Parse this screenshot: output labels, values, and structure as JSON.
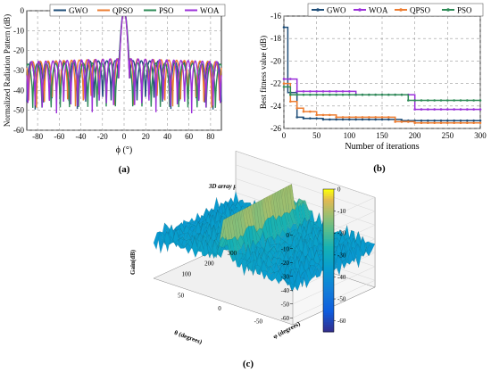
{
  "chart_data": [
    {
      "panel_label": "(a)",
      "type": "line",
      "xlabel": "ϕ (°)",
      "ylabel": "Normalized Radiation Pattern (dB)",
      "xlim": [
        -90,
        90
      ],
      "ylim": [
        -60,
        0
      ],
      "xticks": [
        "-80",
        "-60",
        "-40",
        "-20",
        "0",
        "20",
        "40",
        "60",
        "80"
      ],
      "yticks": [
        "0",
        "-10",
        "-20",
        "-30",
        "-40",
        "-50",
        "-60"
      ],
      "grid": true,
      "legend_position": "top",
      "series": [
        {
          "name": "GWO",
          "color": "#1f4e79",
          "main_lobe_width_deg": 10,
          "sidelobe_peak_db": -25,
          "sidelobe_floor_db": -52,
          "ripple_period_deg": 7.8,
          "phase": 0.3
        },
        {
          "name": "QPSO",
          "color": "#ed7d31",
          "main_lobe_width_deg": 10,
          "sidelobe_peak_db": -24,
          "sidelobe_floor_db": -51,
          "ripple_period_deg": 7.2,
          "phase": 1.4
        },
        {
          "name": "PSO",
          "color": "#2e8b57",
          "main_lobe_width_deg": 11,
          "sidelobe_peak_db": -26,
          "sidelobe_floor_db": -55,
          "ripple_period_deg": 8.5,
          "phase": 2.2
        },
        {
          "name": "WOA",
          "color": "#9b30d9",
          "main_lobe_width_deg": 10,
          "sidelobe_peak_db": -24,
          "sidelobe_floor_db": -55,
          "ripple_period_deg": 6.6,
          "phase": 0.9
        }
      ]
    },
    {
      "panel_label": "(b)",
      "type": "line",
      "xlabel": "Number of iterations",
      "ylabel": "Best fitness value (dB)",
      "xlim": [
        0,
        300
      ],
      "ylim": [
        -26,
        -16
      ],
      "xticks": [
        "0",
        "50",
        "100",
        "150",
        "200",
        "250",
        "300"
      ],
      "yticks": [
        "-16",
        "-18",
        "-20",
        "-22",
        "-24",
        "-26"
      ],
      "grid": true,
      "legend_position": "top",
      "series": [
        {
          "name": "GWO",
          "color": "#1f4e79",
          "steps": [
            [
              0,
              -17.0
            ],
            [
              6,
              -22.8
            ],
            [
              20,
              -25.0
            ],
            [
              30,
              -25.1
            ],
            [
              60,
              -25.2
            ],
            [
              180,
              -25.3
            ],
            [
              300,
              -25.3
            ]
          ]
        },
        {
          "name": "WOA",
          "color": "#9b30d9",
          "steps": [
            [
              0,
              -21.6
            ],
            [
              20,
              -22.7
            ],
            [
              110,
              -23.0
            ],
            [
              200,
              -24.3
            ],
            [
              300,
              -24.3
            ]
          ]
        },
        {
          "name": "QPSO",
          "color": "#ed7d31",
          "steps": [
            [
              0,
              -22.0
            ],
            [
              10,
              -23.6
            ],
            [
              20,
              -24.2
            ],
            [
              30,
              -24.5
            ],
            [
              50,
              -24.8
            ],
            [
              80,
              -25.0
            ],
            [
              170,
              -25.4
            ],
            [
              200,
              -25.5
            ],
            [
              300,
              -25.5
            ]
          ]
        },
        {
          "name": "PSO",
          "color": "#2e8b57",
          "steps": [
            [
              0,
              -22.3
            ],
            [
              10,
              -23.0
            ],
            [
              190,
              -23.5
            ],
            [
              300,
              -23.5
            ]
          ]
        }
      ]
    },
    {
      "panel_label": "(c)",
      "type": "surface",
      "title": "3D array pattern",
      "xlabel": "θ (degrees)",
      "ylabel": "φ (degrees)",
      "zlabel": "Gain(dB)",
      "theta_ticks": [
        "-50",
        "0",
        "50"
      ],
      "phi_ticks": [
        "100",
        "200",
        "300"
      ],
      "z_ticks": [
        "0",
        "-10",
        "-20",
        "-30",
        "-40",
        "-50",
        "-60"
      ],
      "zlim": [
        -65,
        0
      ],
      "colorbar_ticks": [
        "0",
        "-10",
        "-20",
        "-30",
        "-40",
        "-50",
        "-60"
      ],
      "colormap": "parula"
    }
  ]
}
